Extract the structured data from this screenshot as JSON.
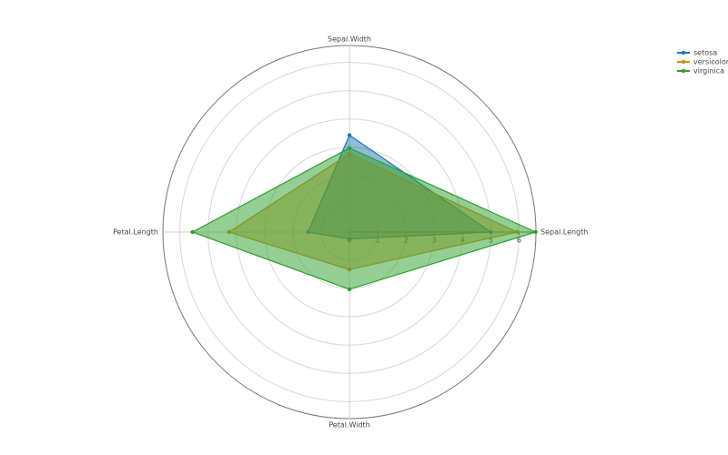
{
  "chart_data": {
    "type": "radar",
    "categories": [
      "Sepal.Length",
      "Sepal.Width",
      "Petal.Length",
      "Petal.Width"
    ],
    "series": [
      {
        "name": "setosa",
        "color": "#1f77b4",
        "values": [
          5.006,
          3.428,
          1.462,
          0.246
        ]
      },
      {
        "name": "versicolor",
        "color": "#c8901c",
        "values": [
          5.936,
          2.77,
          4.26,
          1.326
        ]
      },
      {
        "name": "virginica",
        "color": "#2ca02c",
        "values": [
          6.588,
          2.974,
          5.552,
          2.026
        ]
      }
    ],
    "rlim": [
      0,
      6.6
    ],
    "rticks": [
      0,
      1,
      2,
      3,
      4,
      5,
      6
    ],
    "grid": true,
    "legend": "top-right"
  }
}
